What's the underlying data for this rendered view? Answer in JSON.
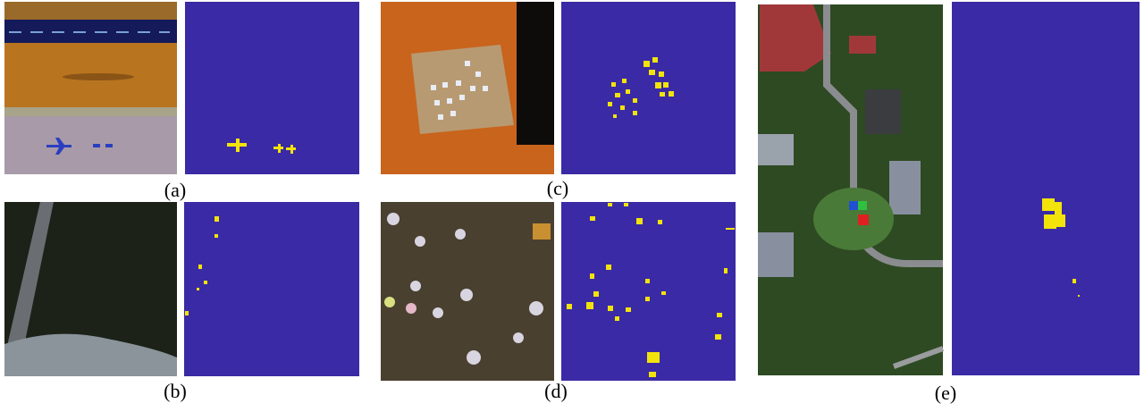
{
  "panels": [
    {
      "caption": "(a)"
    },
    {
      "caption": "(b)"
    },
    {
      "caption": "(c)"
    },
    {
      "caption": "(d)"
    },
    {
      "caption": "(e)"
    }
  ]
}
